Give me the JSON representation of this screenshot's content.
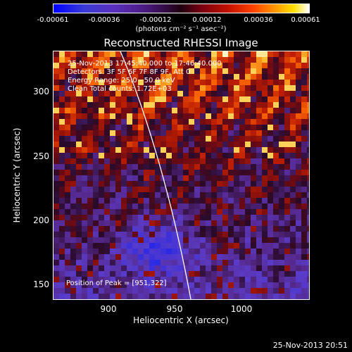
{
  "colorbar": {
    "ticks": [
      "-0.00061",
      "-0.00036",
      "-0.00012",
      "0.00012",
      "0.00036",
      "0.00061"
    ],
    "units": "(photons cm⁻² s⁻¹ asec⁻²)"
  },
  "plot": {
    "title": "Reconstructed RHESSI Image",
    "info_lines": [
      "25-Nov-2013 17:45:40.000 to 17:46:40.000",
      "Detectors: 3F 5F 6F 7F 8F 9F, Att 0",
      "Energy Range: 25.0 - 50.0 keV",
      "Clean     Total counts: 1.72E+03"
    ],
    "peak_text": "Position of Peak = [951,322]",
    "xlabel": "Heliocentric X (arcsec)",
    "ylabel": "Heliocentric Y (arcsec)",
    "xticks": [
      "900",
      "950",
      "1000"
    ],
    "yticks": [
      "300",
      "250",
      "200",
      "150"
    ]
  },
  "footer": {
    "timestamp": "25-Nov-2013 20:51"
  }
}
